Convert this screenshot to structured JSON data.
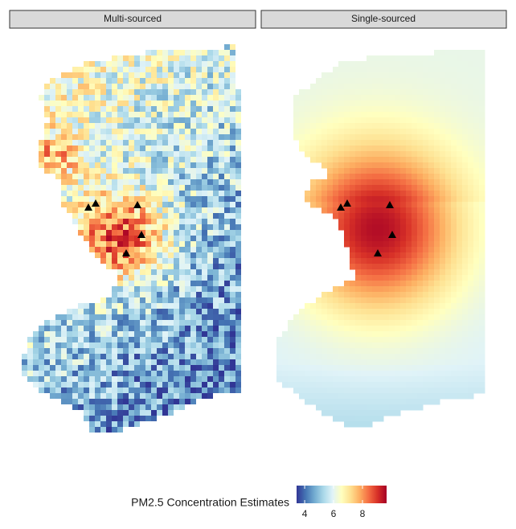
{
  "chart_data": {
    "type": "raster-map",
    "panels": [
      "Multi-sourced",
      "Single-sourced"
    ],
    "legend_title": "PM2.5 Concentration Estimates",
    "colorbar": {
      "lim": [
        3.44,
        9.67
      ],
      "ticks": [
        4,
        6,
        8
      ],
      "colors": [
        "#313695",
        "#4575b4",
        "#74add1",
        "#abd9e9",
        "#e0f3f8",
        "#ffffbf",
        "#fee090",
        "#fdae61",
        "#f46d43",
        "#d73027",
        "#a50026"
      ]
    }
  }
}
